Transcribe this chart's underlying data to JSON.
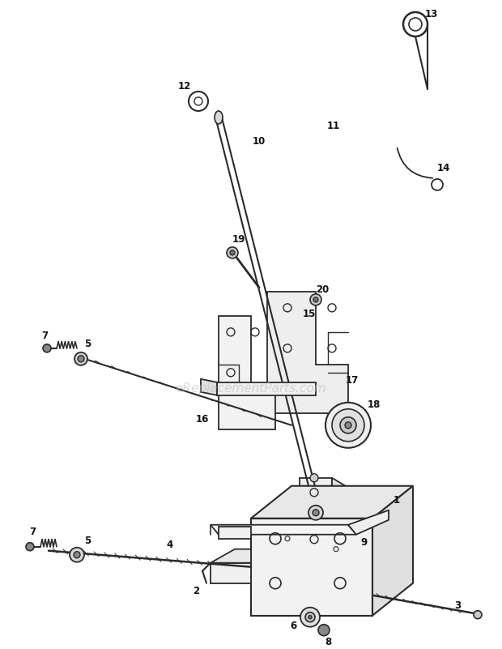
{
  "bg_color": "#ffffff",
  "fig_width": 6.2,
  "fig_height": 8.01,
  "dpi": 100,
  "watermark": "eReplacementParts.com",
  "watermark_color": "#bbbbbb",
  "watermark_alpha": 0.55,
  "line_color": "#2a2a2a",
  "label_color": "#111111"
}
